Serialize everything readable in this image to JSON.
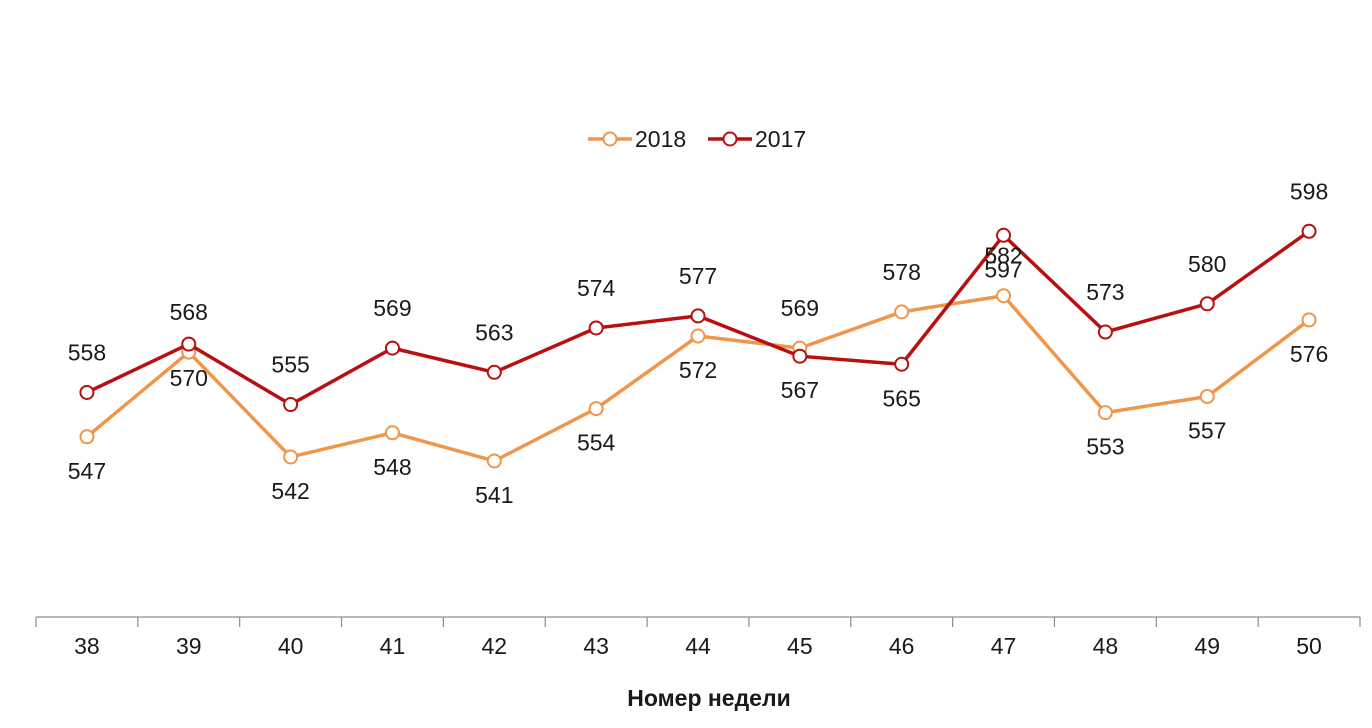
{
  "chart_data": {
    "type": "line",
    "title": "",
    "xlabel": "Номер недели",
    "ylabel": "",
    "categories": [
      "38",
      "39",
      "40",
      "41",
      "42",
      "43",
      "44",
      "45",
      "46",
      "47",
      "48",
      "49",
      "50"
    ],
    "ylim": [
      480,
      620
    ],
    "grid": false,
    "legend_position": "top-center",
    "series": [
      {
        "name": "2018",
        "color": "#f0964a",
        "values": [
          547,
          568,
          542,
          548,
          541,
          554,
          572,
          569,
          578,
          582,
          553,
          557,
          576
        ],
        "labels": [
          "547",
          "568",
          "542",
          "548",
          "541",
          "554",
          "572",
          "569",
          "578",
          "582",
          "553",
          "557",
          "576"
        ]
      },
      {
        "name": "2017",
        "color": "#b80f0f",
        "values": [
          558,
          570,
          555,
          569,
          563,
          574,
          577,
          567,
          565,
          597,
          573,
          580,
          598
        ],
        "labels": [
          "558",
          "570",
          "555",
          "569",
          "563",
          "574",
          "577",
          "567",
          "565",
          "597",
          "573",
          "580",
          "598"
        ]
      }
    ]
  }
}
